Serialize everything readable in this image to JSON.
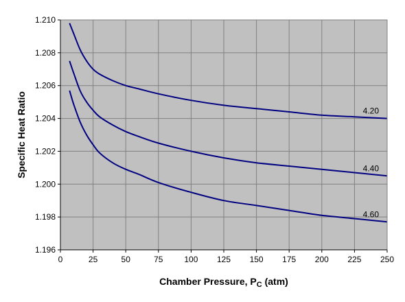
{
  "chart_data": {
    "type": "line",
    "xlabel": "Chamber Pressure, P",
    "xlabel_subscript": "C",
    "xlabel_suffix": " (atm)",
    "ylabel": "Specific Heat Ratio",
    "xlim": [
      0,
      250
    ],
    "ylim": [
      1.196,
      1.21
    ],
    "x_ticks": [
      0,
      25,
      50,
      75,
      100,
      125,
      150,
      175,
      200,
      225,
      250
    ],
    "x_tick_labels": [
      "0",
      "25",
      "50",
      "75",
      "100",
      "125",
      "150",
      "175",
      "200",
      "225",
      "250"
    ],
    "y_ticks": [
      1.196,
      1.198,
      1.2,
      1.202,
      1.204,
      1.206,
      1.208,
      1.21
    ],
    "y_tick_labels": [
      "1.196",
      "1.198",
      "1.200",
      "1.202",
      "1.204",
      "1.206",
      "1.208",
      "1.210"
    ],
    "grid": true,
    "series": [
      {
        "name": "4.20",
        "x": [
          7,
          10,
          15,
          20,
          25,
          30,
          40,
          50,
          60,
          75,
          100,
          125,
          150,
          175,
          200,
          225,
          250
        ],
        "y": [
          1.2098,
          1.2092,
          1.2082,
          1.2075,
          1.207,
          1.2067,
          1.2063,
          1.206,
          1.2058,
          1.2055,
          1.2051,
          1.2048,
          1.2046,
          1.2044,
          1.2042,
          1.2041,
          1.204
        ]
      },
      {
        "name": "4.40",
        "x": [
          7,
          10,
          15,
          20,
          25,
          30,
          40,
          50,
          60,
          75,
          100,
          125,
          150,
          175,
          200,
          225,
          250
        ],
        "y": [
          1.2075,
          1.2068,
          1.2057,
          1.205,
          1.2045,
          1.2041,
          1.2036,
          1.2032,
          1.2029,
          1.2025,
          1.202,
          1.2016,
          1.2013,
          1.2011,
          1.2009,
          1.2007,
          1.2005
        ]
      },
      {
        "name": "4.60",
        "x": [
          7,
          10,
          15,
          20,
          25,
          30,
          40,
          50,
          60,
          75,
          100,
          125,
          150,
          175,
          200,
          225,
          250
        ],
        "y": [
          1.2057,
          1.2049,
          1.2038,
          1.203,
          1.2024,
          1.2019,
          1.2013,
          1.2009,
          1.2006,
          1.2001,
          1.1995,
          1.199,
          1.1987,
          1.1984,
          1.1981,
          1.1979,
          1.1977
        ]
      }
    ],
    "colors": {
      "plot_background": "#c0c0c0",
      "grid": "#808080",
      "line": "#000080",
      "axis": "#000000"
    }
  }
}
